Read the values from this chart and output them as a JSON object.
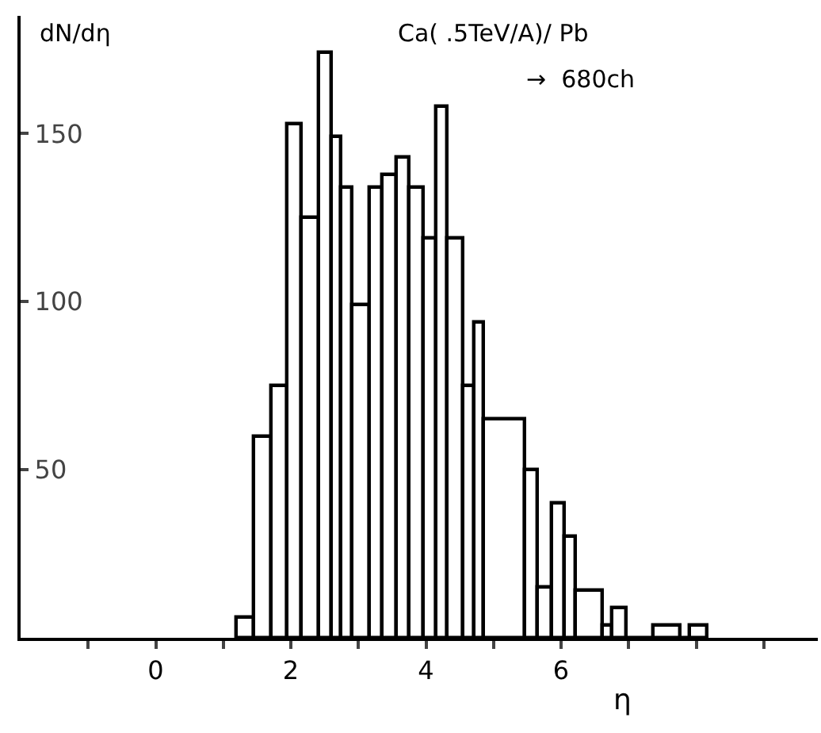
{
  "chart_data": {
    "type": "histogram",
    "xlabel": "η",
    "ylabel": "dN/dη",
    "annotations": [
      "Ca( .5TeV/A)/ Pb",
      "→  680ch"
    ],
    "bins": [
      1.2,
      1.45,
      1.7,
      1.95,
      2.15,
      2.4,
      2.6,
      2.75,
      2.9,
      3.15,
      3.35,
      3.55,
      3.75,
      3.95,
      4.15,
      4.3,
      4.55,
      4.7,
      4.85,
      5.45,
      5.65,
      5.85,
      6.05,
      6.2,
      6.6,
      6.75,
      6.95,
      7.35,
      7.75,
      7.9,
      8.15
    ],
    "values": [
      6,
      60,
      75,
      153,
      125,
      174,
      149,
      134,
      99,
      134,
      138,
      143,
      134,
      119,
      158,
      119,
      75,
      94,
      65,
      50,
      15,
      40,
      30,
      14,
      4,
      9,
      0,
      4,
      0,
      4
    ],
    "color": "#000000",
    "xlim": [
      -2,
      9.8
    ],
    "xticks": [
      {
        "value": -2,
        "label": null
      },
      {
        "value": -1,
        "label": null
      },
      0,
      {
        "value": 1,
        "label": null
      },
      2,
      {
        "value": 3,
        "label": null
      },
      4,
      {
        "value": 5,
        "label": null
      },
      6,
      {
        "value": 7,
        "label": null
      },
      {
        "value": 8,
        "label": null
      },
      {
        "value": 9,
        "label": null
      }
    ],
    "ylim": [
      0,
      185
    ],
    "yticks": [
      50,
      100,
      150
    ],
    "grid": false
  }
}
